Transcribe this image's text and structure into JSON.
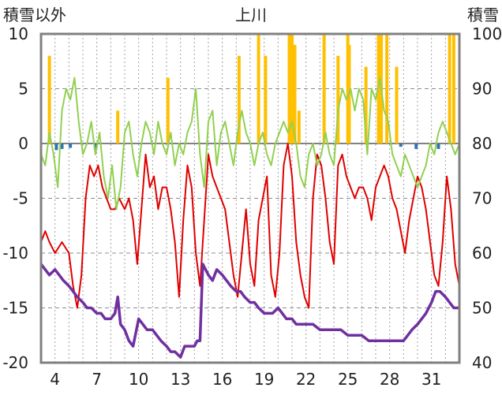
{
  "chart_data": {
    "type": "line",
    "title": "上川",
    "ylabel_left": "積雪以外",
    "ylabel_right": "積雪",
    "ylim_left": [
      -20,
      10
    ],
    "ylim_right": [
      40,
      100
    ],
    "yticks_left": [
      10,
      5,
      0,
      -5,
      -10,
      -15,
      -20
    ],
    "yticks_right": [
      100,
      90,
      80,
      70,
      60,
      50,
      40
    ],
    "xlim": [
      3,
      33
    ],
    "xticks": [
      4,
      7,
      10,
      13,
      16,
      19,
      22,
      25,
      28,
      31
    ],
    "grid": "dashed",
    "colors": {
      "red": "#e00000",
      "green": "#92d050",
      "purple": "#7030a0",
      "orange": "#ffc000",
      "blue": "#2e75b6",
      "frame": "#808080"
    },
    "series": [
      {
        "color": "red",
        "axis": "left",
        "points": [
          [
            3,
            -9
          ],
          [
            3.3,
            -8
          ],
          [
            3.6,
            -9
          ],
          [
            4,
            -10
          ],
          [
            4.5,
            -9
          ],
          [
            5,
            -10
          ],
          [
            5.3,
            -13
          ],
          [
            5.6,
            -15
          ],
          [
            5.9,
            -12
          ],
          [
            6.2,
            -5
          ],
          [
            6.5,
            -2
          ],
          [
            6.8,
            -3
          ],
          [
            7.1,
            -2
          ],
          [
            7.4,
            -4
          ],
          [
            7.7,
            -5
          ],
          [
            8,
            -6
          ],
          [
            8.3,
            -6
          ],
          [
            8.6,
            -5
          ],
          [
            9,
            -6
          ],
          [
            9.3,
            -5
          ],
          [
            9.6,
            -7
          ],
          [
            9.9,
            -11
          ],
          [
            10.2,
            -6
          ],
          [
            10.5,
            -1
          ],
          [
            10.8,
            -4
          ],
          [
            11.1,
            -3
          ],
          [
            11.4,
            -6
          ],
          [
            11.7,
            -4
          ],
          [
            12,
            -4
          ],
          [
            12.3,
            -6
          ],
          [
            12.6,
            -9
          ],
          [
            12.9,
            -14
          ],
          [
            13.2,
            -7
          ],
          [
            13.5,
            -2
          ],
          [
            13.8,
            -4
          ],
          [
            14.1,
            -10
          ],
          [
            14.4,
            -13
          ],
          [
            14.7,
            -7
          ],
          [
            15,
            -1
          ],
          [
            15.3,
            -3
          ],
          [
            15.6,
            -4
          ],
          [
            15.9,
            -5
          ],
          [
            16.2,
            -6
          ],
          [
            16.5,
            -9
          ],
          [
            16.8,
            -12
          ],
          [
            17.1,
            -14
          ],
          [
            17.4,
            -10
          ],
          [
            17.7,
            -6
          ],
          [
            18,
            -11
          ],
          [
            18.3,
            -13
          ],
          [
            18.6,
            -7
          ],
          [
            18.9,
            -5
          ],
          [
            19.2,
            -3
          ],
          [
            19.5,
            -12
          ],
          [
            19.8,
            -14
          ],
          [
            20.1,
            -10
          ],
          [
            20.4,
            -2
          ],
          [
            20.7,
            0
          ],
          [
            21,
            -3
          ],
          [
            21.3,
            -9
          ],
          [
            21.6,
            -12
          ],
          [
            21.9,
            -14
          ],
          [
            22.2,
            -15
          ],
          [
            22.5,
            -5
          ],
          [
            22.8,
            -1
          ],
          [
            23.1,
            -2
          ],
          [
            23.4,
            -5
          ],
          [
            23.7,
            -9
          ],
          [
            24,
            -11
          ],
          [
            24.3,
            -2
          ],
          [
            24.6,
            -1
          ],
          [
            24.9,
            -3
          ],
          [
            25.2,
            -4
          ],
          [
            25.5,
            -5
          ],
          [
            25.8,
            -4
          ],
          [
            26.1,
            -4
          ],
          [
            26.4,
            -5
          ],
          [
            26.7,
            -7
          ],
          [
            27,
            -4
          ],
          [
            27.3,
            -3
          ],
          [
            27.6,
            -2
          ],
          [
            27.9,
            -3
          ],
          [
            28.2,
            -5
          ],
          [
            28.5,
            -6
          ],
          [
            28.8,
            -8
          ],
          [
            29.1,
            -10
          ],
          [
            29.4,
            -7
          ],
          [
            29.7,
            -5
          ],
          [
            30,
            -3
          ],
          [
            30.3,
            -4
          ],
          [
            30.6,
            -6
          ],
          [
            30.9,
            -9
          ],
          [
            31.2,
            -12
          ],
          [
            31.5,
            -13
          ],
          [
            31.8,
            -9
          ],
          [
            32.1,
            -3
          ],
          [
            32.4,
            -6
          ],
          [
            32.7,
            -11
          ],
          [
            33,
            -13
          ]
        ]
      },
      {
        "color": "green",
        "axis": "left",
        "points": [
          [
            3,
            -1
          ],
          [
            3.3,
            -2
          ],
          [
            3.6,
            1
          ],
          [
            3.9,
            -1
          ],
          [
            4.2,
            -4
          ],
          [
            4.5,
            3
          ],
          [
            4.8,
            5
          ],
          [
            5.1,
            4
          ],
          [
            5.4,
            6
          ],
          [
            5.7,
            2
          ],
          [
            6,
            -1
          ],
          [
            6.3,
            0
          ],
          [
            6.6,
            2
          ],
          [
            6.9,
            -1
          ],
          [
            7.2,
            1
          ],
          [
            7.5,
            -3
          ],
          [
            7.8,
            -5
          ],
          [
            8.1,
            -2
          ],
          [
            8.4,
            -6
          ],
          [
            8.7,
            -4
          ],
          [
            9,
            1
          ],
          [
            9.3,
            2
          ],
          [
            9.6,
            -1
          ],
          [
            9.9,
            -3
          ],
          [
            10.2,
            0
          ],
          [
            10.5,
            2
          ],
          [
            10.8,
            1
          ],
          [
            11.1,
            -1
          ],
          [
            11.4,
            2
          ],
          [
            11.7,
            0
          ],
          [
            12,
            -1
          ],
          [
            12.3,
            1
          ],
          [
            12.6,
            -2
          ],
          [
            12.9,
            0
          ],
          [
            13.2,
            -1
          ],
          [
            13.5,
            1
          ],
          [
            13.8,
            2
          ],
          [
            14.1,
            5
          ],
          [
            14.4,
            -1
          ],
          [
            14.7,
            -4
          ],
          [
            15,
            2
          ],
          [
            15.3,
            3
          ],
          [
            15.6,
            -2
          ],
          [
            15.9,
            1
          ],
          [
            16.2,
            2
          ],
          [
            16.5,
            0
          ],
          [
            16.8,
            -2
          ],
          [
            17.1,
            1
          ],
          [
            17.4,
            3
          ],
          [
            17.7,
            1
          ],
          [
            18,
            0
          ],
          [
            18.3,
            -2
          ],
          [
            18.6,
            0
          ],
          [
            18.9,
            1
          ],
          [
            19.2,
            -1
          ],
          [
            19.5,
            -2
          ],
          [
            19.8,
            0
          ],
          [
            20.1,
            1
          ],
          [
            20.4,
            2
          ],
          [
            20.7,
            1
          ],
          [
            21,
            2
          ],
          [
            21.3,
            0
          ],
          [
            21.6,
            -3
          ],
          [
            21.9,
            -4
          ],
          [
            22.2,
            -1
          ],
          [
            22.5,
            0
          ],
          [
            22.8,
            -2
          ],
          [
            23.1,
            -1
          ],
          [
            23.4,
            1
          ],
          [
            23.7,
            -1
          ],
          [
            24,
            -2
          ],
          [
            24.3,
            3
          ],
          [
            24.6,
            5
          ],
          [
            24.9,
            4
          ],
          [
            25.2,
            5
          ],
          [
            25.5,
            3
          ],
          [
            25.8,
            5
          ],
          [
            26.1,
            4
          ],
          [
            26.4,
            -1
          ],
          [
            26.7,
            5
          ],
          [
            27,
            4
          ],
          [
            27.3,
            6
          ],
          [
            27.6,
            3
          ],
          [
            27.9,
            2
          ],
          [
            28.2,
            -1
          ],
          [
            28.5,
            -2
          ],
          [
            28.8,
            -3
          ],
          [
            29.1,
            -1
          ],
          [
            29.4,
            -2
          ],
          [
            29.7,
            -3
          ],
          [
            30,
            -4
          ],
          [
            30.3,
            -3
          ],
          [
            30.6,
            -2
          ],
          [
            30.9,
            0
          ],
          [
            31.2,
            -1
          ],
          [
            31.5,
            1
          ],
          [
            31.8,
            2
          ],
          [
            32.1,
            1
          ],
          [
            32.4,
            0
          ],
          [
            32.7,
            -1
          ],
          [
            33,
            0
          ]
        ]
      },
      {
        "color": "purple",
        "axis": "right",
        "points": [
          [
            3,
            58
          ],
          [
            3.3,
            57
          ],
          [
            3.6,
            56
          ],
          [
            4,
            57
          ],
          [
            4.3,
            56
          ],
          [
            4.6,
            55
          ],
          [
            5,
            54
          ],
          [
            5.3,
            53
          ],
          [
            5.6,
            52
          ],
          [
            6,
            51
          ],
          [
            6.3,
            50
          ],
          [
            6.6,
            50
          ],
          [
            7,
            49
          ],
          [
            7.3,
            49
          ],
          [
            7.6,
            48
          ],
          [
            8,
            48
          ],
          [
            8.3,
            49
          ],
          [
            8.5,
            52
          ],
          [
            8.7,
            47
          ],
          [
            9,
            46
          ],
          [
            9.3,
            44
          ],
          [
            9.6,
            43
          ],
          [
            10,
            48
          ],
          [
            10.3,
            47
          ],
          [
            10.6,
            46
          ],
          [
            11,
            46
          ],
          [
            11.3,
            45
          ],
          [
            11.6,
            44
          ],
          [
            12,
            43
          ],
          [
            12.3,
            42
          ],
          [
            12.6,
            42
          ],
          [
            13,
            41
          ],
          [
            13.3,
            43
          ],
          [
            13.6,
            43
          ],
          [
            14,
            43
          ],
          [
            14.2,
            44
          ],
          [
            14.4,
            44
          ],
          [
            14.6,
            58
          ],
          [
            15,
            56
          ],
          [
            15.3,
            55
          ],
          [
            15.6,
            57
          ],
          [
            16,
            56
          ],
          [
            16.3,
            55
          ],
          [
            16.6,
            54
          ],
          [
            17,
            53
          ],
          [
            17.3,
            53
          ],
          [
            17.6,
            52
          ],
          [
            18,
            51
          ],
          [
            18.3,
            51
          ],
          [
            18.6,
            50
          ],
          [
            19,
            49
          ],
          [
            19.3,
            49
          ],
          [
            19.6,
            49
          ],
          [
            20,
            50
          ],
          [
            20.3,
            49
          ],
          [
            20.6,
            48
          ],
          [
            21,
            48
          ],
          [
            21.3,
            47
          ],
          [
            21.6,
            47
          ],
          [
            22,
            47
          ],
          [
            22.5,
            47
          ],
          [
            23,
            46
          ],
          [
            23.5,
            46
          ],
          [
            24,
            46
          ],
          [
            24.5,
            46
          ],
          [
            25,
            45
          ],
          [
            25.5,
            45
          ],
          [
            26,
            45
          ],
          [
            26.5,
            44
          ],
          [
            27,
            44
          ],
          [
            27.5,
            44
          ],
          [
            28,
            44
          ],
          [
            28.5,
            44
          ],
          [
            29,
            44
          ],
          [
            29.3,
            45
          ],
          [
            29.6,
            46
          ],
          [
            30,
            47
          ],
          [
            30.3,
            48
          ],
          [
            30.6,
            49
          ],
          [
            31,
            51
          ],
          [
            31.3,
            53
          ],
          [
            31.6,
            53
          ],
          [
            32,
            52
          ],
          [
            32.3,
            51
          ],
          [
            32.6,
            50
          ],
          [
            33,
            50
          ]
        ]
      }
    ],
    "bars": [
      {
        "color": "orange",
        "x": [
          3.6,
          8.5,
          12.1,
          17.2,
          18.6,
          19.1,
          20.8,
          21.0,
          21.2,
          21.5,
          23.3,
          24.3,
          25.0,
          25.1,
          26.3,
          27.2,
          27.4,
          27.8,
          28.5,
          32.3,
          32.6
        ],
        "values": [
          8,
          3,
          6,
          8,
          10,
          8,
          10,
          10,
          9,
          3,
          10,
          8,
          10,
          9,
          7,
          10,
          10,
          10,
          7,
          10,
          10
        ]
      },
      {
        "color": "blue",
        "x": [
          4.1,
          4.5,
          5.1,
          6.9,
          28.8,
          29.9,
          31.5
        ],
        "values": [
          -0.6,
          -0.5,
          -0.4,
          -0.6,
          -0.3,
          -0.5,
          -0.5
        ]
      }
    ]
  }
}
